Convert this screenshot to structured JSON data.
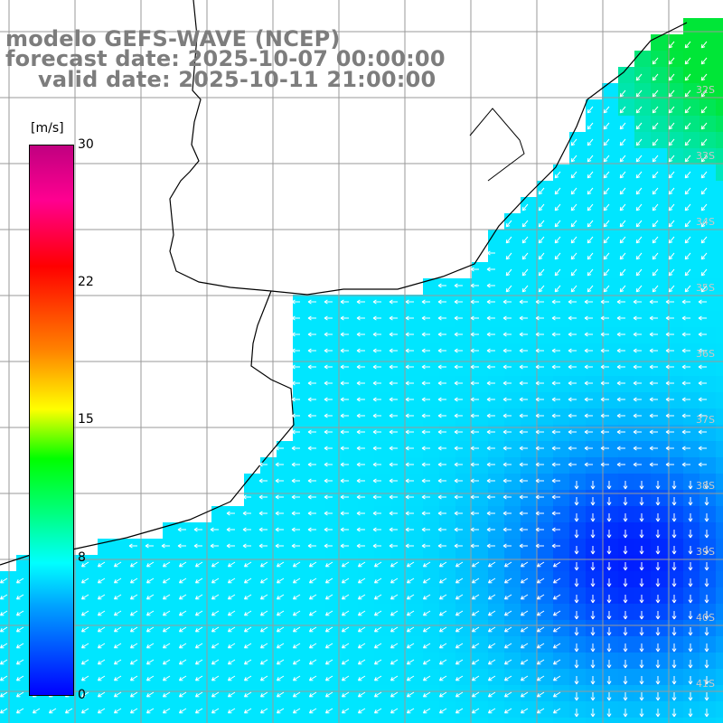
{
  "title": {
    "line1": "modelo GEFS-WAVE (NCEP)",
    "line2": "forecast date: 2025-10-07 00:00:00",
    "line3": "valid date: 2025-10-11 21:00:00"
  },
  "colorbar": {
    "unit": "[m/s]",
    "ticks": [
      "30",
      "22",
      "15",
      "8",
      "0"
    ],
    "colors": {
      "low": "#0000ff",
      "mid_low": "#00ffff",
      "mid": "#00ff00",
      "mid_high": "#ffff00",
      "high": "#ff0000",
      "top": "#c00080"
    }
  },
  "map": {
    "land_color": "#ffffff",
    "coastline_color": "#000000",
    "grid_color": "#9a9a9a",
    "arrow_color": "#ffffff",
    "lat_labels": [
      "32S",
      "33S",
      "34S",
      "35S",
      "36S",
      "37S",
      "38S",
      "39S",
      "40S",
      "41S"
    ]
  }
}
